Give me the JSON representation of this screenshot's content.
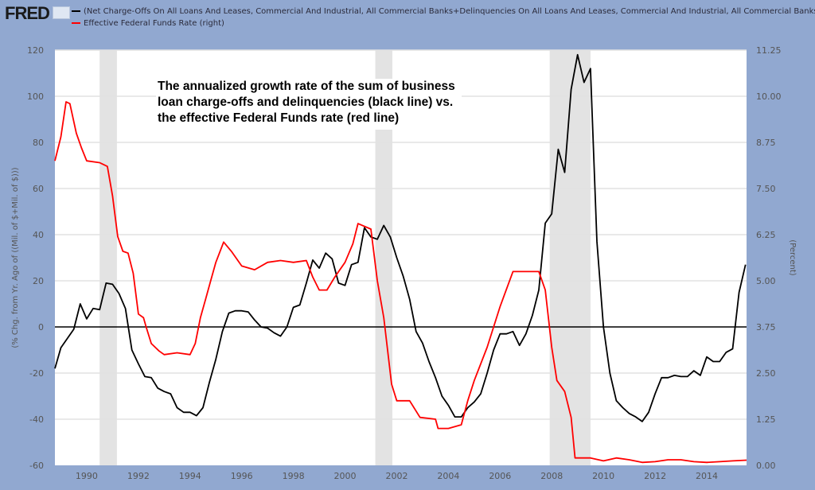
{
  "header": {
    "logo": "FRED",
    "legend": [
      {
        "label": "(Net Charge-Offs On All Loans And Leases, Commercial And Industrial, All Commercial Banks+Delinquencies On All Loans And Leases, Commercial And Industrial, All Commercial Banks) (left)",
        "color": "#000000"
      },
      {
        "label": "Effective Federal Funds Rate (right)",
        "color": "#ff0000"
      }
    ]
  },
  "annotation": {
    "lines": [
      "The annualized growth rate of the sum of business",
      "loan charge-offs and delinquencies (black line) vs.",
      "the effective Federal Funds rate (red line)"
    ]
  },
  "chart_data": {
    "type": "line",
    "ylabel": "(% Chg. from Yr. Ago of ((Mil. of $+Mil. of $)))",
    "y2label": "(Percent)",
    "xlim": [
      1988.77,
      2015.54
    ],
    "ylim": [
      -60,
      120
    ],
    "y2lim": [
      0,
      11.25
    ],
    "xticks": [
      "1990",
      "1992",
      "1994",
      "1996",
      "1998",
      "2000",
      "2002",
      "2004",
      "2006",
      "2008",
      "2010",
      "2012",
      "2014"
    ],
    "yticks": [
      "-60",
      "-40",
      "-20",
      "0",
      "20",
      "40",
      "60",
      "80",
      "100",
      "120"
    ],
    "y2ticks": [
      "0.00",
      "1.25",
      "2.50",
      "3.75",
      "5.00",
      "6.25",
      "7.50",
      "8.75",
      "10.00",
      "11.25"
    ],
    "grid": true,
    "legend_position": "top",
    "recessions": [
      [
        1990.5,
        1991.17
      ],
      [
        2001.17,
        2001.83
      ],
      [
        2007.92,
        2009.5
      ]
    ],
    "series": [
      {
        "name": "(Net Charge-Offs On All Loans And Leases, Commercial And Industrial, All Commercial Banks+Delinquencies On All Loans And Leases, Commercial And Industrial, All Commercial Banks) (left)",
        "axis": "left",
        "color": "#000000",
        "x": [
          1988.77,
          1989.0,
          1989.25,
          1989.5,
          1989.75,
          1990.0,
          1990.25,
          1990.5,
          1990.75,
          1991.0,
          1991.25,
          1991.5,
          1991.75,
          1992.0,
          1992.25,
          1992.5,
          1992.75,
          1993.0,
          1993.25,
          1993.5,
          1993.75,
          1994.0,
          1994.25,
          1994.5,
          1994.75,
          1995.0,
          1995.25,
          1995.5,
          1995.75,
          1996.0,
          1996.25,
          1996.5,
          1996.75,
          1997.0,
          1997.25,
          1997.5,
          1997.75,
          1998.0,
          1998.25,
          1998.5,
          1998.75,
          1999.0,
          1999.25,
          1999.5,
          1999.75,
          2000.0,
          2000.25,
          2000.5,
          2000.75,
          2001.0,
          2001.25,
          2001.5,
          2001.75,
          2002.0,
          2002.25,
          2002.5,
          2002.75,
          2003.0,
          2003.25,
          2003.5,
          2003.75,
          2004.0,
          2004.25,
          2004.5,
          2004.75,
          2005.0,
          2005.25,
          2005.5,
          2005.75,
          2006.0,
          2006.25,
          2006.5,
          2006.75,
          2007.0,
          2007.25,
          2007.5,
          2007.75,
          2008.0,
          2008.25,
          2008.5,
          2008.75,
          2009.0,
          2009.25,
          2009.5,
          2009.75,
          2010.0,
          2010.25,
          2010.5,
          2010.75,
          2011.0,
          2011.25,
          2011.5,
          2011.75,
          2012.0,
          2012.25,
          2012.5,
          2012.75,
          2013.0,
          2013.25,
          2013.5,
          2013.75,
          2014.0,
          2014.25,
          2014.5,
          2014.75,
          2015.0,
          2015.25,
          2015.5
        ],
        "y": [
          -18,
          -9,
          -5,
          -1,
          10,
          3.5,
          8,
          7.5,
          19,
          18.5,
          14.5,
          8,
          -10,
          -16,
          -21.5,
          -22,
          -26.5,
          -28,
          -29,
          -35,
          -37,
          -37,
          -38.5,
          -35,
          -24,
          -14,
          -2,
          6,
          7,
          7,
          6.5,
          3,
          0,
          -0.5,
          -2.5,
          -4,
          0,
          8.5,
          9.5,
          19,
          29,
          25.5,
          32,
          29.5,
          19,
          18,
          27,
          28,
          43,
          39,
          38,
          44,
          39,
          30,
          22,
          12,
          -2,
          -7,
          -15,
          -22,
          -30,
          -34,
          -39,
          -39,
          -35,
          -32.5,
          -29,
          -20,
          -10,
          -3,
          -3,
          -2,
          -8,
          -3,
          5,
          16,
          45,
          49,
          77,
          67,
          103,
          118,
          106,
          112,
          37,
          0,
          -20,
          -32,
          -35,
          -37.5,
          -39,
          -41,
          -37,
          -29,
          -22,
          -22,
          -21,
          -21.5,
          -21.5,
          -19,
          -21,
          -13,
          -15,
          -15,
          -11,
          -9.5,
          15,
          27
        ]
      },
      {
        "name": "Effective Federal Funds Rate (right)",
        "axis": "right",
        "color": "#ff0000",
        "x": [
          1988.77,
          1989.0,
          1989.2,
          1989.35,
          1989.6,
          1989.8,
          1990.0,
          1990.5,
          1990.8,
          1991.0,
          1991.2,
          1991.4,
          1991.6,
          1991.8,
          1992.0,
          1992.2,
          1992.3,
          1992.5,
          1992.8,
          1993.0,
          1993.5,
          1994.0,
          1994.2,
          1994.4,
          1994.6,
          1994.8,
          1995.0,
          1995.3,
          1995.6,
          1996.0,
          1996.5,
          1997.0,
          1997.5,
          1998.0,
          1998.5,
          1998.75,
          1999.0,
          1999.3,
          1999.6,
          2000.0,
          2000.3,
          2000.5,
          2001.0,
          2001.25,
          2001.5,
          2001.8,
          2002.0,
          2002.5,
          2002.9,
          2003.5,
          2003.6,
          2004.0,
          2004.5,
          2004.75,
          2005.0,
          2005.5,
          2006.0,
          2006.5,
          2007.0,
          2007.5,
          2007.75,
          2008.0,
          2008.2,
          2008.5,
          2008.75,
          2008.9,
          2009.5,
          2010.0,
          2010.5,
          2011.0,
          2011.5,
          2012.0,
          2012.5,
          2013.0,
          2013.5,
          2014.0,
          2014.5,
          2015.0,
          2015.54
        ],
        "y": [
          8.25,
          8.9,
          9.85,
          9.8,
          9.0,
          8.6,
          8.25,
          8.2,
          8.1,
          7.3,
          6.2,
          5.8,
          5.75,
          5.2,
          4.1,
          4.0,
          3.75,
          3.3,
          3.1,
          3.0,
          3.05,
          3.0,
          3.3,
          4.0,
          4.5,
          5.0,
          5.5,
          6.05,
          5.8,
          5.4,
          5.3,
          5.5,
          5.55,
          5.5,
          5.55,
          5.1,
          4.75,
          4.75,
          5.1,
          5.5,
          6.0,
          6.55,
          6.4,
          5.0,
          4.0,
          2.2,
          1.75,
          1.75,
          1.3,
          1.25,
          1.0,
          1.0,
          1.1,
          1.75,
          2.3,
          3.2,
          4.3,
          5.25,
          5.25,
          5.25,
          4.75,
          3.2,
          2.3,
          2.0,
          1.3,
          0.2,
          0.2,
          0.12,
          0.2,
          0.15,
          0.08,
          0.1,
          0.15,
          0.15,
          0.1,
          0.08,
          0.1,
          0.12,
          0.14
        ]
      }
    ]
  }
}
